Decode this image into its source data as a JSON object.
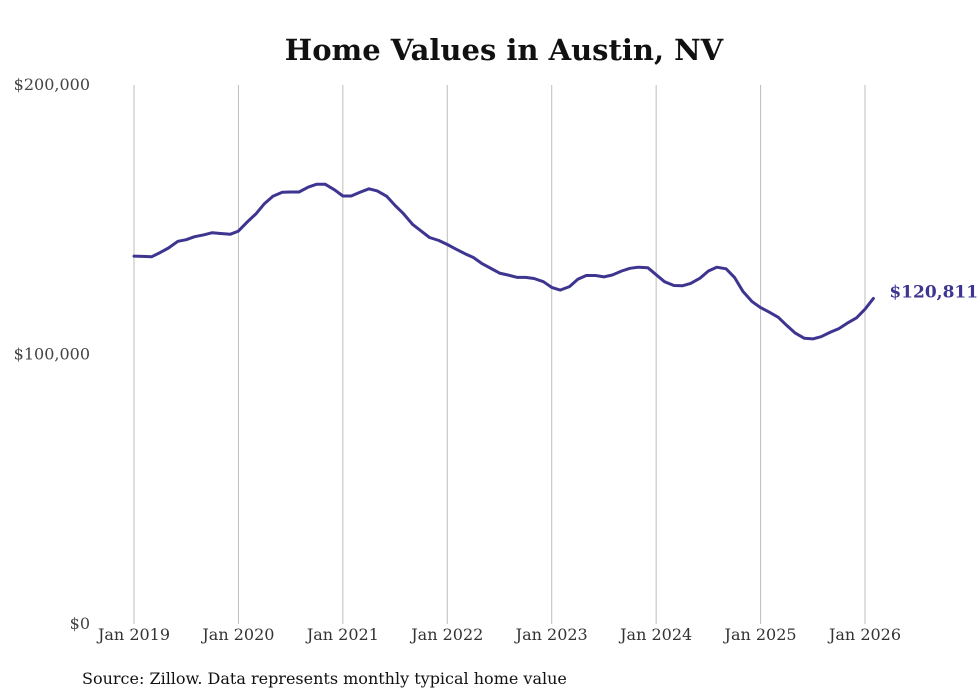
{
  "chart_data": {
    "type": "line",
    "title": "Home Values in Austin, NV",
    "xlabel": "",
    "ylabel": "",
    "ylim": [
      0,
      200000
    ],
    "y_ticks": [
      {
        "value": 0,
        "label": "$0"
      },
      {
        "value": 100000,
        "label": "$100,000"
      },
      {
        "value": 200000,
        "label": "$200,000"
      }
    ],
    "x_ticks": [
      {
        "value": 2019.0,
        "label": "Jan 2019"
      },
      {
        "value": 2020.0,
        "label": "Jan 2020"
      },
      {
        "value": 2021.0,
        "label": "Jan 2021"
      },
      {
        "value": 2022.0,
        "label": "Jan 2022"
      },
      {
        "value": 2023.0,
        "label": "Jan 2023"
      },
      {
        "value": 2024.0,
        "label": "Jan 2024"
      },
      {
        "value": 2025.0,
        "label": "Jan 2025"
      },
      {
        "value": 2026.0,
        "label": "Jan 2026"
      }
    ],
    "grid": "vertical",
    "series": [
      {
        "name": "Home value",
        "color": "#3d3590",
        "end_label": "$120,811",
        "points": [
          [
            2019.0,
            136500
          ],
          [
            2019.08,
            136400
          ],
          [
            2019.17,
            136300
          ],
          [
            2019.25,
            137800
          ],
          [
            2019.33,
            139500
          ],
          [
            2019.42,
            142000
          ],
          [
            2019.5,
            142600
          ],
          [
            2019.58,
            143700
          ],
          [
            2019.67,
            144400
          ],
          [
            2019.75,
            145200
          ],
          [
            2019.83,
            144900
          ],
          [
            2019.92,
            144600
          ],
          [
            2020.0,
            145800
          ],
          [
            2020.08,
            149000
          ],
          [
            2020.17,
            152300
          ],
          [
            2020.25,
            156000
          ],
          [
            2020.33,
            158700
          ],
          [
            2020.42,
            160200
          ],
          [
            2020.5,
            160300
          ],
          [
            2020.58,
            160300
          ],
          [
            2020.67,
            162100
          ],
          [
            2020.75,
            163200
          ],
          [
            2020.83,
            163200
          ],
          [
            2020.92,
            161100
          ],
          [
            2021.0,
            158800
          ],
          [
            2021.08,
            158800
          ],
          [
            2021.17,
            160300
          ],
          [
            2021.25,
            161500
          ],
          [
            2021.33,
            160700
          ],
          [
            2021.42,
            158700
          ],
          [
            2021.5,
            155300
          ],
          [
            2021.58,
            152300
          ],
          [
            2021.67,
            148200
          ],
          [
            2021.75,
            145800
          ],
          [
            2021.83,
            143400
          ],
          [
            2021.92,
            142300
          ],
          [
            2022.0,
            140800
          ],
          [
            2022.08,
            139200
          ],
          [
            2022.17,
            137400
          ],
          [
            2022.25,
            136000
          ],
          [
            2022.33,
            133800
          ],
          [
            2022.42,
            131900
          ],
          [
            2022.5,
            130200
          ],
          [
            2022.58,
            129500
          ],
          [
            2022.67,
            128600
          ],
          [
            2022.75,
            128600
          ],
          [
            2022.83,
            128200
          ],
          [
            2022.92,
            127000
          ],
          [
            2023.0,
            124900
          ],
          [
            2023.08,
            123900
          ],
          [
            2023.17,
            125200
          ],
          [
            2023.25,
            127900
          ],
          [
            2023.33,
            129300
          ],
          [
            2023.42,
            129300
          ],
          [
            2023.5,
            128800
          ],
          [
            2023.58,
            129500
          ],
          [
            2023.67,
            131000
          ],
          [
            2023.75,
            132000
          ],
          [
            2023.83,
            132400
          ],
          [
            2023.92,
            132200
          ],
          [
            2024.0,
            129600
          ],
          [
            2024.08,
            127000
          ],
          [
            2024.17,
            125600
          ],
          [
            2024.25,
            125500
          ],
          [
            2024.33,
            126400
          ],
          [
            2024.42,
            128300
          ],
          [
            2024.5,
            131000
          ],
          [
            2024.58,
            132400
          ],
          [
            2024.67,
            131800
          ],
          [
            2024.75,
            128600
          ],
          [
            2024.83,
            123500
          ],
          [
            2024.92,
            119600
          ],
          [
            2025.0,
            117400
          ],
          [
            2025.08,
            115800
          ],
          [
            2025.17,
            113800
          ],
          [
            2025.25,
            110800
          ],
          [
            2025.33,
            108000
          ],
          [
            2025.42,
            106000
          ],
          [
            2025.5,
            105800
          ],
          [
            2025.58,
            106600
          ],
          [
            2025.67,
            108300
          ],
          [
            2025.75,
            109600
          ],
          [
            2025.83,
            111600
          ],
          [
            2025.92,
            113600
          ],
          [
            2026.0,
            116800
          ],
          [
            2026.08,
            120811
          ]
        ]
      }
    ]
  },
  "footer": {
    "source": "Source: Zillow. Data represents monthly typical home value"
  }
}
